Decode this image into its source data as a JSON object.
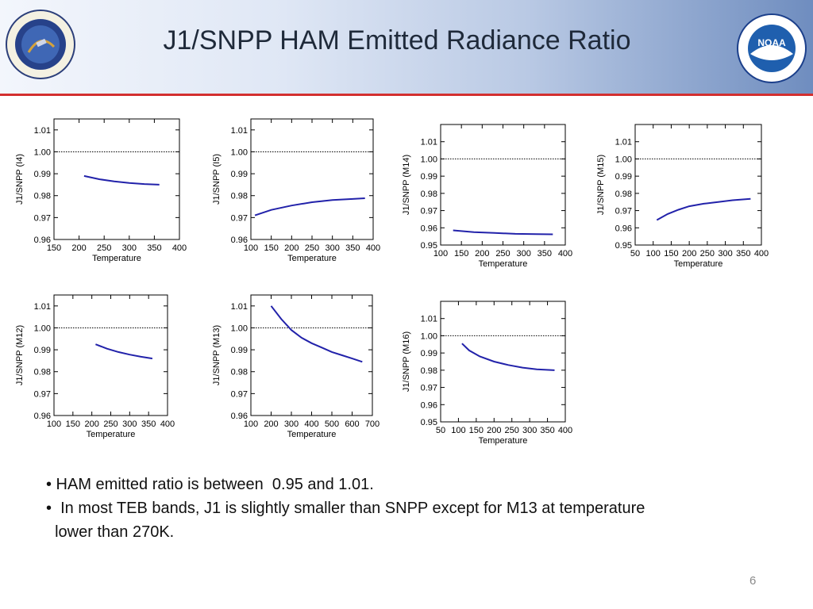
{
  "header": {
    "title": "J1/SNPP HAM Emitted Radiance Ratio",
    "left_logo": {
      "icon": "star-seal-icon",
      "text": "NOAA NESDIS STAR"
    },
    "right_logo": {
      "icon": "noaa-seal-icon",
      "text": "NOAA"
    },
    "rule_color": "#d32f2f"
  },
  "chart_data": [
    {
      "type": "line",
      "id": "I4",
      "ylabel": "J1/SNPP (I4)",
      "xlabel": "Temperature",
      "xlim": [
        150,
        400
      ],
      "xticks": [
        150,
        200,
        250,
        300,
        350,
        400
      ],
      "ylim": [
        0.96,
        1.015
      ],
      "yticks": [
        0.96,
        0.97,
        0.98,
        0.99,
        1.0,
        1.01
      ],
      "ytick_labels": [
        "0.96",
        "0.97",
        "0.98",
        "0.99",
        "1.00",
        "1.01"
      ],
      "reference_line": 1.0,
      "series": [
        {
          "x": [
            210,
            240,
            270,
            300,
            330,
            360
          ],
          "y": [
            0.989,
            0.9875,
            0.9865,
            0.9858,
            0.9853,
            0.985
          ]
        }
      ]
    },
    {
      "type": "line",
      "id": "I5",
      "ylabel": "J1/SNPP (I5)",
      "xlabel": "Temperature",
      "xlim": [
        100,
        400
      ],
      "xticks": [
        100,
        150,
        200,
        250,
        300,
        350,
        400
      ],
      "ylim": [
        0.96,
        1.015
      ],
      "yticks": [
        0.96,
        0.97,
        0.98,
        0.99,
        1.0,
        1.01
      ],
      "ytick_labels": [
        "0.96",
        "0.97",
        "0.98",
        "0.99",
        "1.00",
        "1.01"
      ],
      "reference_line": 1.0,
      "series": [
        {
          "x": [
            110,
            150,
            200,
            250,
            300,
            350,
            380
          ],
          "y": [
            0.971,
            0.9735,
            0.9755,
            0.977,
            0.978,
            0.9785,
            0.9788
          ]
        }
      ]
    },
    {
      "type": "line",
      "id": "M14",
      "ylabel": "J1/SNPP (M14)",
      "xlabel": "Temperature",
      "xlim": [
        100,
        400
      ],
      "xticks": [
        100,
        150,
        200,
        250,
        300,
        350,
        400
      ],
      "ylim": [
        0.95,
        1.02
      ],
      "yticks": [
        0.95,
        0.96,
        0.97,
        0.98,
        0.99,
        1.0,
        1.01
      ],
      "ytick_labels": [
        "0.95",
        "0.96",
        "0.97",
        "0.98",
        "0.99",
        "1.00",
        "1.01"
      ],
      "reference_line": 1.0,
      "series": [
        {
          "x": [
            130,
            180,
            230,
            280,
            330,
            370
          ],
          "y": [
            0.9585,
            0.9575,
            0.957,
            0.9565,
            0.9563,
            0.9562
          ]
        }
      ]
    },
    {
      "type": "line",
      "id": "M15",
      "ylabel": "J1/SNPP (M15)",
      "xlabel": "Temperature",
      "xlim": [
        50,
        400
      ],
      "xticks": [
        50,
        100,
        150,
        200,
        250,
        300,
        350,
        400
      ],
      "ylim": [
        0.95,
        1.02
      ],
      "yticks": [
        0.95,
        0.96,
        0.97,
        0.98,
        0.99,
        1.0,
        1.01
      ],
      "ytick_labels": [
        "0.95",
        "0.96",
        "0.97",
        "0.98",
        "0.99",
        "1.00",
        "1.01"
      ],
      "reference_line": 1.0,
      "series": [
        {
          "x": [
            110,
            140,
            170,
            200,
            240,
            280,
            320,
            370
          ],
          "y": [
            0.9645,
            0.968,
            0.9705,
            0.9725,
            0.974,
            0.975,
            0.976,
            0.9768
          ]
        }
      ]
    },
    {
      "type": "line",
      "id": "M12",
      "ylabel": "J1/SNPP (M12)",
      "xlabel": "Temperature",
      "xlim": [
        100,
        400
      ],
      "xticks": [
        100,
        150,
        200,
        250,
        300,
        350,
        400
      ],
      "ylim": [
        0.96,
        1.015
      ],
      "yticks": [
        0.96,
        0.97,
        0.98,
        0.99,
        1.0,
        1.01
      ],
      "ytick_labels": [
        "0.96",
        "0.97",
        "0.98",
        "0.99",
        "1.00",
        "1.01"
      ],
      "reference_line": 1.0,
      "series": [
        {
          "x": [
            210,
            240,
            270,
            300,
            330,
            360
          ],
          "y": [
            0.9925,
            0.9905,
            0.989,
            0.9878,
            0.9868,
            0.986
          ]
        }
      ]
    },
    {
      "type": "line",
      "id": "M13",
      "ylabel": "J1/SNPP (M13)",
      "xlabel": "Temperature",
      "xlim": [
        100,
        700
      ],
      "xticks": [
        100,
        200,
        300,
        400,
        500,
        600,
        700
      ],
      "ylim": [
        0.96,
        1.015
      ],
      "yticks": [
        0.96,
        0.97,
        0.98,
        0.99,
        1.0,
        1.01
      ],
      "ytick_labels": [
        "0.96",
        "0.97",
        "0.98",
        "0.99",
        "1.00",
        "1.01"
      ],
      "reference_line": 1.0,
      "series": [
        {
          "x": [
            200,
            250,
            300,
            350,
            400,
            450,
            500,
            550,
            600,
            650
          ],
          "y": [
            1.01,
            1.004,
            0.999,
            0.9955,
            0.993,
            0.991,
            0.989,
            0.9875,
            0.986,
            0.9845
          ]
        }
      ]
    },
    {
      "type": "line",
      "id": "M16",
      "ylabel": "J1/SNPP (M16)",
      "xlabel": "Temperature",
      "xlim": [
        50,
        400
      ],
      "xticks": [
        50,
        100,
        150,
        200,
        250,
        300,
        350,
        400
      ],
      "ylim": [
        0.95,
        1.02
      ],
      "yticks": [
        0.95,
        0.96,
        0.97,
        0.98,
        0.99,
        1.0,
        1.01
      ],
      "ytick_labels": [
        "0.95",
        "0.96",
        "0.97",
        "0.98",
        "0.99",
        "1.00",
        "1.01"
      ],
      "reference_line": 1.0,
      "series": [
        {
          "x": [
            110,
            130,
            160,
            200,
            240,
            280,
            320,
            370
          ],
          "y": [
            0.9955,
            0.9915,
            0.988,
            0.985,
            0.983,
            0.9815,
            0.9805,
            0.98
          ]
        }
      ]
    }
  ],
  "bullets": [
    "• HAM emitted ratio is between  0.95 and 1.01.",
    "•  In most TEB bands, J1 is slightly smaller than SNPP except for M13 at temperature",
    "  lower than 270K."
  ],
  "page_number": "6",
  "colors": {
    "curve": "#2222aa",
    "axis": "#000000"
  }
}
